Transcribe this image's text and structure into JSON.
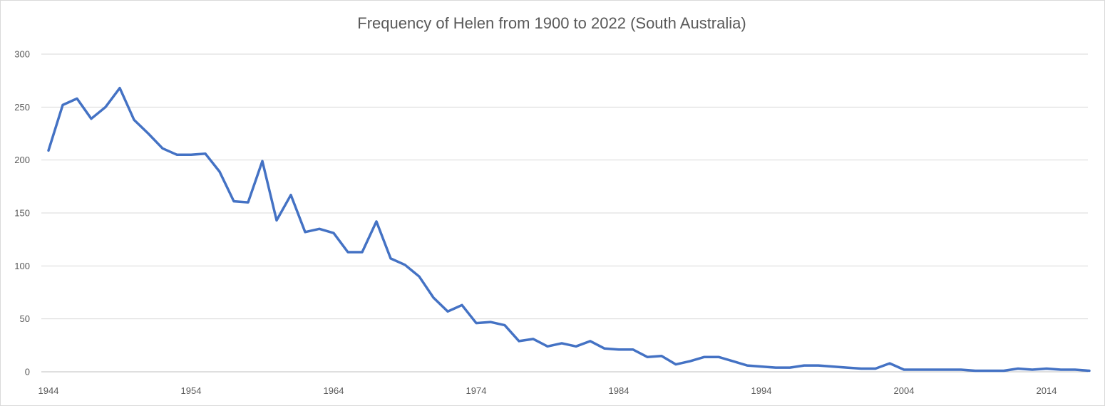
{
  "chart_data": {
    "type": "line",
    "title": "Frequency of Helen from 1900 to 2022 (South Australia)",
    "xlabel": "",
    "ylabel": "",
    "ylim": [
      0,
      300
    ],
    "yticks": [
      0,
      50,
      100,
      150,
      200,
      250,
      300
    ],
    "xlim": [
      1944,
      2017
    ],
    "xticks": [
      1944,
      1954,
      1964,
      1974,
      1984,
      1994,
      2004,
      2014
    ],
    "grid": "horizontal",
    "legend": "none",
    "line_color": "#4472c4",
    "series": [
      {
        "x": [
          1944,
          1945,
          1946,
          1947,
          1948,
          1949,
          1950,
          1951,
          1952,
          1953,
          1954,
          1955,
          1956,
          1957,
          1958,
          1959,
          1960,
          1961,
          1962,
          1963,
          1964,
          1965,
          1966,
          1967,
          1968,
          1969,
          1970,
          1971,
          1972,
          1973,
          1974,
          1975,
          1976,
          1977,
          1978,
          1979,
          1980,
          1981,
          1982,
          1983,
          1984,
          1985,
          1986,
          1987,
          1988,
          1989,
          1990,
          1991,
          1992,
          1993,
          1994,
          1995,
          1996,
          1997,
          1998,
          1999,
          2000,
          2001,
          2002,
          2003,
          2004,
          2005,
          2006,
          2007,
          2008,
          2009,
          2010,
          2011,
          2012,
          2013,
          2014,
          2015,
          2016,
          2017
        ],
        "values": [
          209,
          252,
          258,
          239,
          250,
          268,
          238,
          225,
          211,
          205,
          205,
          206,
          189,
          161,
          160,
          199,
          143,
          167,
          132,
          135,
          131,
          113,
          113,
          142,
          107,
          101,
          90,
          70,
          57,
          63,
          46,
          47,
          44,
          29,
          31,
          24,
          27,
          24,
          29,
          22,
          21,
          21,
          14,
          15,
          7,
          10,
          14,
          14,
          10,
          6,
          5,
          4,
          4,
          6,
          6,
          5,
          4,
          3,
          3,
          8,
          2,
          2,
          2,
          2,
          2,
          1,
          1,
          1,
          3,
          2,
          3,
          2,
          2,
          1
        ]
      }
    ]
  }
}
